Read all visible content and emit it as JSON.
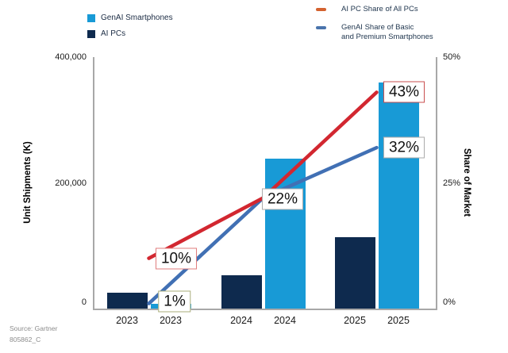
{
  "legend_bars": [
    {
      "label": "GenAI Smartphones",
      "color": "#189AD6"
    },
    {
      "label": "AI PCs",
      "color": "#0E2A4E"
    }
  ],
  "legend_lines": [
    {
      "label": "AI PC Share of All PCs",
      "label2": "",
      "color": "#D4622F"
    },
    {
      "label": "GenAI Share of Basic",
      "label2": "and Premium Smartphones",
      "color": "#4A74AC"
    }
  ],
  "footer": {
    "source": "Source: Gartner",
    "doc_id": "805862_C"
  },
  "chart_data": {
    "type": "bar+line",
    "categories": [
      "2023",
      "2024",
      "2025"
    ],
    "x_tick_labels": [
      "2023",
      "2023",
      "2024",
      "2024",
      "2025",
      "2025"
    ],
    "bar_series": [
      {
        "name": "AI PCs",
        "color": "#0E2A4E",
        "values": [
          25000,
          53000,
          114000
        ]
      },
      {
        "name": "GenAI Smartphones",
        "color": "#189AD6",
        "values": [
          7500,
          238000,
          360000
        ]
      }
    ],
    "line_series": [
      {
        "name": "AI PC Share of All PCs",
        "color": "#D22730",
        "values": [
          10,
          22,
          43
        ]
      },
      {
        "name": "GenAI Share of Basic and Premium Smartphones",
        "color": "#4170B4",
        "values": [
          1,
          22,
          32
        ]
      }
    ],
    "left_axis": {
      "title": "Unit Shipments (K)",
      "range": [
        0,
        400000
      ],
      "ticks": [
        {
          "value": 400000,
          "label": "400,000"
        },
        {
          "value": 200000,
          "label": "200,000"
        },
        {
          "value": 0,
          "label": "0"
        }
      ]
    },
    "right_axis": {
      "title": "Share of Market",
      "range": [
        0,
        50
      ],
      "ticks": [
        {
          "value": 50,
          "label": "50%"
        },
        {
          "value": 25,
          "label": "25%"
        },
        {
          "value": 0,
          "label": "0%"
        }
      ]
    },
    "annotations": [
      {
        "text": "10%",
        "border": "#E07C7C"
      },
      {
        "text": "1%",
        "border": "#A9AD7A"
      },
      {
        "text": "22%",
        "border": "#ABABAB"
      },
      {
        "text": "43%",
        "border": "#C94F4F"
      },
      {
        "text": "32%",
        "border": "#ABABAB"
      }
    ],
    "grid": false,
    "legend_position": "top",
    "axis_color": "#A8A8A8"
  }
}
